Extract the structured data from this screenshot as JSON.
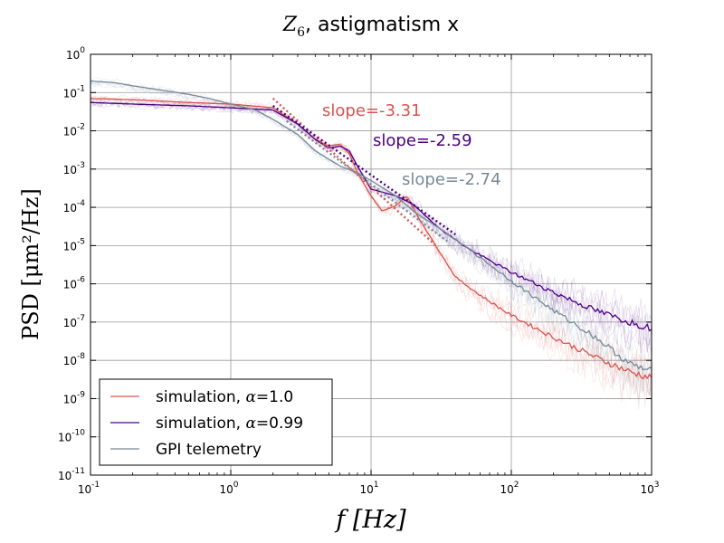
{
  "chart_data": {
    "type": "line",
    "title": "Z6, astigmatism x",
    "title_symbol": "Z",
    "title_subscript": "6",
    "title_rest": ", astigmatism x",
    "xlabel": "f [Hz]",
    "ylabel": "PSD [μm²/Hz]",
    "xscale": "log",
    "yscale": "log",
    "xlim": [
      0.1,
      1000
    ],
    "ylim": [
      1e-11,
      1
    ],
    "grid": true,
    "legend_position": "lower-left",
    "x_ticks": [
      {
        "base": "10",
        "exp": "-1"
      },
      {
        "base": "10",
        "exp": "0"
      },
      {
        "base": "10",
        "exp": "1"
      },
      {
        "base": "10",
        "exp": "2"
      },
      {
        "base": "10",
        "exp": "3"
      }
    ],
    "y_ticks": [
      {
        "base": "10",
        "exp": "-11"
      },
      {
        "base": "10",
        "exp": "-10"
      },
      {
        "base": "10",
        "exp": "-9"
      },
      {
        "base": "10",
        "exp": "-8"
      },
      {
        "base": "10",
        "exp": "-7"
      },
      {
        "base": "10",
        "exp": "-6"
      },
      {
        "base": "10",
        "exp": "-5"
      },
      {
        "base": "10",
        "exp": "-4"
      },
      {
        "base": "10",
        "exp": "-3"
      },
      {
        "base": "10",
        "exp": "-2"
      },
      {
        "base": "10",
        "exp": "-1"
      },
      {
        "base": "10",
        "exp": "0"
      }
    ],
    "series": [
      {
        "name": "simulation, α=1.0",
        "color": "#d9534f",
        "x": [
          0.1,
          0.2,
          0.5,
          1.0,
          2.0,
          3.0,
          4.0,
          5.0,
          6.0,
          7.0,
          8.0,
          10.0,
          12.0,
          15.0,
          18.0,
          22.0,
          30.0,
          40.0,
          60.0,
          100.0,
          200.0,
          400.0,
          700.0,
          1000.0
        ],
        "y": [
          0.07,
          0.065,
          0.055,
          0.05,
          0.04,
          0.015,
          0.006,
          0.004,
          0.0045,
          0.0025,
          0.0008,
          0.0002,
          8e-05,
          0.00011,
          0.0002,
          5e-05,
          8e-06,
          1.5e-06,
          5e-07,
          1.5e-07,
          4e-08,
          1.2e-08,
          5e-09,
          3.5e-09
        ]
      },
      {
        "name": "simulation, α=0.99",
        "color": "#4b0082",
        "x": [
          0.1,
          0.2,
          0.5,
          1.0,
          2.0,
          3.0,
          4.0,
          5.0,
          6.0,
          7.0,
          8.0,
          10.0,
          12.0,
          15.0,
          20.0,
          30.0,
          50.0,
          100.0,
          200.0,
          400.0,
          700.0,
          1000.0
        ],
        "y": [
          0.055,
          0.05,
          0.045,
          0.04,
          0.035,
          0.015,
          0.006,
          0.0035,
          0.004,
          0.003,
          0.0012,
          0.0003,
          0.00025,
          0.0002,
          0.00012,
          3e-05,
          8e-06,
          2e-06,
          6e-07,
          2e-07,
          1e-07,
          7e-08
        ]
      },
      {
        "name": "GPI telemetry",
        "color": "#778899",
        "x": [
          0.1,
          0.15,
          0.2,
          0.3,
          0.5,
          0.7,
          1.0,
          1.5,
          2.0,
          3.0,
          4.0,
          6.0,
          8.0,
          10.0,
          15.0,
          20.0,
          30.0,
          50.0,
          100.0,
          200.0,
          400.0,
          700.0,
          1000.0
        ],
        "y": [
          0.2,
          0.18,
          0.15,
          0.12,
          0.09,
          0.07,
          0.05,
          0.035,
          0.02,
          0.008,
          0.003,
          0.0012,
          0.0008,
          0.0005,
          0.0002,
          8e-05,
          3e-05,
          8e-06,
          1.2e-06,
          2e-07,
          4e-08,
          8e-09,
          5e-09
        ]
      }
    ],
    "slope_fits": [
      {
        "label": "slope=-3.31",
        "color": "#d9534f",
        "x": [
          2.0,
          30.0
        ],
        "y": [
          0.07,
          9e-06
        ]
      },
      {
        "label": "slope=-2.59",
        "color": "#4b0082",
        "x": [
          2.0,
          40.0
        ],
        "y": [
          0.045,
          1.95e-05
        ]
      },
      {
        "label": "slope=-2.74",
        "color": "#778899",
        "x": [
          2.5,
          35.0
        ],
        "y": [
          0.018,
          1.29e-05
        ]
      }
    ],
    "legend": [
      {
        "text": "simulation, α=1.0",
        "prefix": "simulation, ",
        "symbol": "α",
        "value": "=1.0",
        "color": "#d9534f"
      },
      {
        "text": "simulation, α=0.99",
        "prefix": "simulation, ",
        "symbol": "α",
        "value": "=0.99",
        "color": "#4b0082"
      },
      {
        "text": "GPI telemetry",
        "prefix": "GPI telemetry",
        "symbol": "",
        "value": "",
        "color": "#778899"
      }
    ]
  }
}
